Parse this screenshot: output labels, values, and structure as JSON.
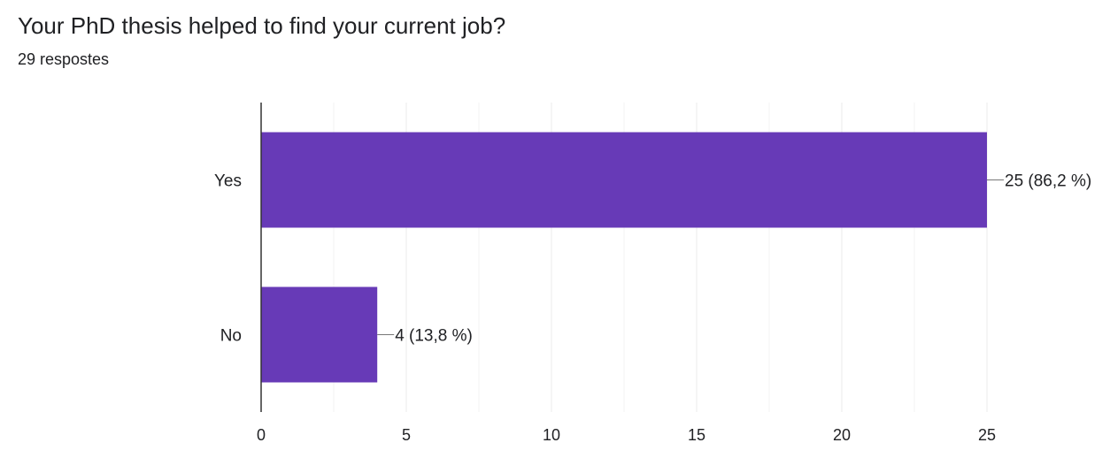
{
  "title": "Your PhD thesis helped to find your current job?",
  "response_count": "29 respostes",
  "chart_data": {
    "type": "bar",
    "orientation": "horizontal",
    "categories": [
      "Yes",
      "No"
    ],
    "values": [
      25,
      4
    ],
    "value_labels": [
      "25 (86,2 %)",
      "4 (13,8 %)"
    ],
    "xlim": [
      0,
      25
    ],
    "xticks": [
      0,
      5,
      10,
      15,
      20,
      25
    ],
    "grid": true,
    "bar_color": "#673ab7",
    "grid_color": "#ebebeb"
  }
}
